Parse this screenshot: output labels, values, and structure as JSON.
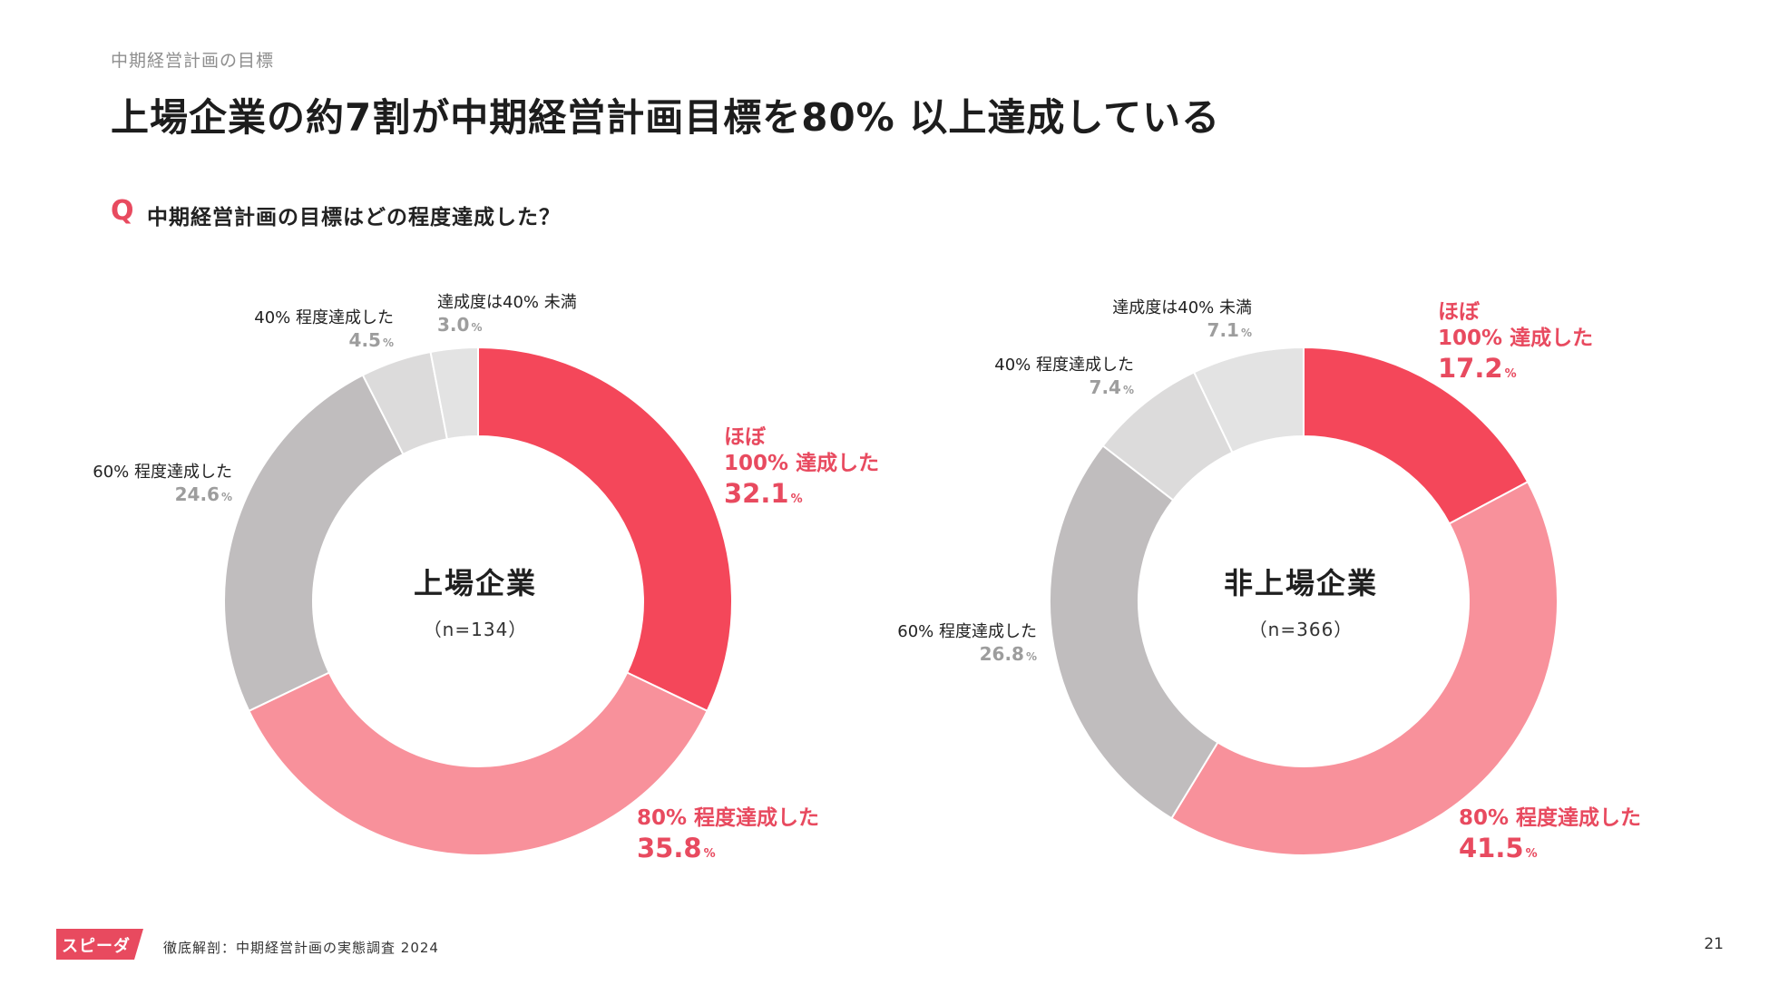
{
  "header": {
    "section_label": "中期経営計画の目標",
    "title": "上場企業の約7割が中期経営計画目標を80% 以上達成している"
  },
  "question": {
    "mark": "Q",
    "text": "中期経営計画の目標はどの程度達成した？"
  },
  "colors": {
    "accent": "#e84a5f",
    "s100": "#f4475a",
    "s80": "#f8919b",
    "s60": "#c0bdbe",
    "s40": "#dcdbdb",
    "s40under": "#e3e3e3"
  },
  "chart_data": [
    {
      "type": "pie",
      "donut": true,
      "title": "上場企業",
      "n_label": "（n=134）",
      "unit": "%",
      "slices": [
        {
          "label": "ほぼ 100% 達成した",
          "label_line1": "ほぼ",
          "label_line2": "100% 達成した",
          "value": 32.1,
          "value_text": "32.1",
          "color": "#f4475a"
        },
        {
          "label": "80% 程度達成した",
          "value": 35.8,
          "value_text": "35.8",
          "color": "#f8919b"
        },
        {
          "label": "60% 程度達成した",
          "value": 24.6,
          "value_text": "24.6",
          "color": "#c0bdbe"
        },
        {
          "label": "40% 程度達成した",
          "value": 4.5,
          "value_text": "4.5",
          "color": "#dcdbdb"
        },
        {
          "label": "達成度は40% 未満",
          "value": 3.0,
          "value_text": "3.0",
          "color": "#e3e3e3"
        }
      ]
    },
    {
      "type": "pie",
      "donut": true,
      "title": "非上場企業",
      "n_label": "（n=366）",
      "unit": "%",
      "slices": [
        {
          "label": "ほぼ 100% 達成した",
          "label_line1": "ほぼ",
          "label_line2": "100% 達成した",
          "value": 17.2,
          "value_text": "17.2",
          "color": "#f4475a"
        },
        {
          "label": "80% 程度達成した",
          "value": 41.5,
          "value_text": "41.5",
          "color": "#f8919b"
        },
        {
          "label": "60% 程度達成した",
          "value": 26.8,
          "value_text": "26.8",
          "color": "#c0bdbe"
        },
        {
          "label": "40% 程度達成した",
          "value": 7.4,
          "value_text": "7.4",
          "color": "#dcdbdb"
        },
        {
          "label": "達成度は40% 未満",
          "value": 7.1,
          "value_text": "7.1",
          "color": "#e3e3e3"
        }
      ]
    }
  ],
  "footer": {
    "logo_text": "スピーダ",
    "source": "徹底解剖：中期経営計画の実態調査 2024",
    "page_number": "21"
  }
}
